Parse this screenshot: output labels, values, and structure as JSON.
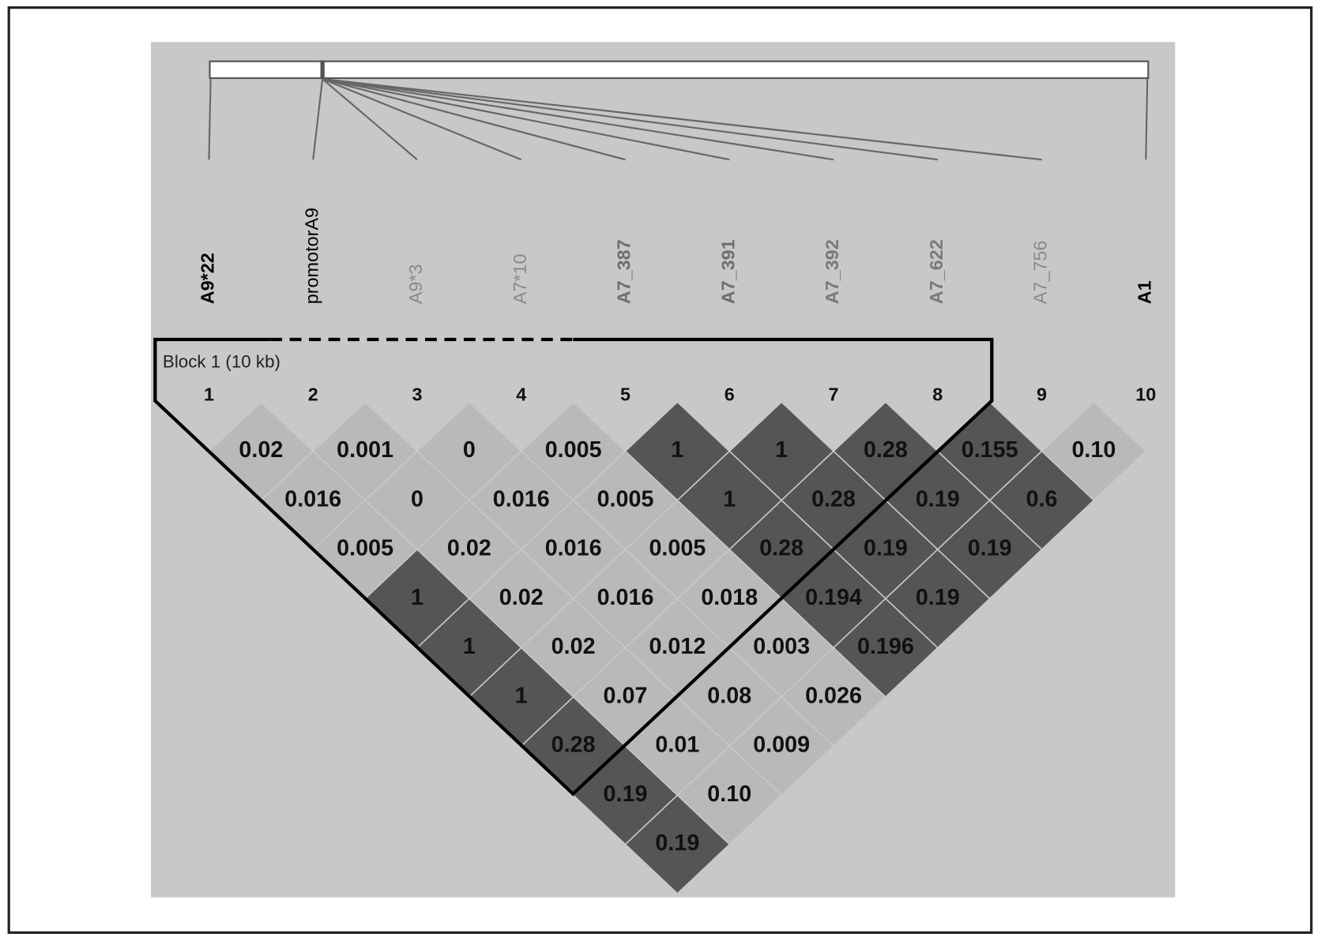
{
  "markers": [
    {
      "number": 1,
      "name": "A9*22",
      "color": "#000000",
      "bold": true
    },
    {
      "number": 2,
      "name": "promotorA9",
      "color": "#000000",
      "bold": false
    },
    {
      "number": 3,
      "name": "A9*3",
      "color": "#8a8a8a",
      "bold": false
    },
    {
      "number": 4,
      "name": "A7*10",
      "color": "#8a8a8a",
      "bold": false
    },
    {
      "number": 5,
      "name": "A7_387",
      "color": "#6e6e6e",
      "bold": true
    },
    {
      "number": 6,
      "name": "A7_391",
      "color": "#6e6e6e",
      "bold": true
    },
    {
      "number": 7,
      "name": "A7_392",
      "color": "#7a7a7a",
      "bold": true
    },
    {
      "number": 8,
      "name": "A7_622",
      "color": "#7a7a7a",
      "bold": true
    },
    {
      "number": 9,
      "name": "A7_756",
      "color": "#8a8a8a",
      "bold": false
    },
    {
      "number": 10,
      "name": "A1",
      "color": "#000000",
      "bold": true
    }
  ],
  "block": {
    "label": "Block 1 (10 kb)"
  },
  "ld_rows": [
    [
      {
        "value": "0.02",
        "shade": "#b9b9b9"
      },
      {
        "value": "0.001",
        "shade": "#b9b9b9"
      },
      {
        "value": "0",
        "shade": "#b9b9b9"
      },
      {
        "value": "0.005",
        "shade": "#b9b9b9"
      },
      {
        "value": "1",
        "shade": "#555555"
      },
      {
        "value": "1",
        "shade": "#555555"
      },
      {
        "value": "0.28",
        "shade": "#555555"
      },
      {
        "value": "0.155",
        "shade": "#555555"
      },
      {
        "value": "0.10",
        "shade": "#b9b9b9"
      }
    ],
    [
      {
        "value": "0.016",
        "shade": "#b9b9b9"
      },
      {
        "value": "0",
        "shade": "#b9b9b9"
      },
      {
        "value": "0.016",
        "shade": "#b9b9b9"
      },
      {
        "value": "0.005",
        "shade": "#b9b9b9"
      },
      {
        "value": "1",
        "shade": "#555555"
      },
      {
        "value": "0.28",
        "shade": "#555555"
      },
      {
        "value": "0.19",
        "shade": "#555555"
      },
      {
        "value": "0.6",
        "shade": "#555555"
      }
    ],
    [
      {
        "value": "0.005",
        "shade": "#b9b9b9"
      },
      {
        "value": "0.02",
        "shade": "#b9b9b9"
      },
      {
        "value": "0.016",
        "shade": "#b9b9b9"
      },
      {
        "value": "0.005",
        "shade": "#b9b9b9"
      },
      {
        "value": "0.28",
        "shade": "#555555"
      },
      {
        "value": "0.19",
        "shade": "#555555"
      },
      {
        "value": "0.19",
        "shade": "#555555"
      }
    ],
    [
      {
        "value": "1",
        "shade": "#555555"
      },
      {
        "value": "0.02",
        "shade": "#b9b9b9"
      },
      {
        "value": "0.016",
        "shade": "#b9b9b9"
      },
      {
        "value": "0.018",
        "shade": "#b9b9b9"
      },
      {
        "value": "0.194",
        "shade": "#555555"
      },
      {
        "value": "0.19",
        "shade": "#555555"
      }
    ],
    [
      {
        "value": "1",
        "shade": "#555555"
      },
      {
        "value": "0.02",
        "shade": "#b9b9b9"
      },
      {
        "value": "0.012",
        "shade": "#b9b9b9"
      },
      {
        "value": "0.003",
        "shade": "#b9b9b9"
      },
      {
        "value": "0.196",
        "shade": "#555555"
      }
    ],
    [
      {
        "value": "1",
        "shade": "#555555"
      },
      {
        "value": "0.07",
        "shade": "#b9b9b9"
      },
      {
        "value": "0.08",
        "shade": "#b9b9b9"
      },
      {
        "value": "0.026",
        "shade": "#b9b9b9"
      }
    ],
    [
      {
        "value": "0.28",
        "shade": "#555555"
      },
      {
        "value": "0.01",
        "shade": "#b9b9b9"
      },
      {
        "value": "0.009",
        "shade": "#b9b9b9"
      }
    ],
    [
      {
        "value": "0.19",
        "shade": "#555555"
      },
      {
        "value": "0.10",
        "shade": "#b9b9b9"
      }
    ],
    [
      {
        "value": "0.19",
        "shade": "#555555"
      }
    ]
  ]
}
